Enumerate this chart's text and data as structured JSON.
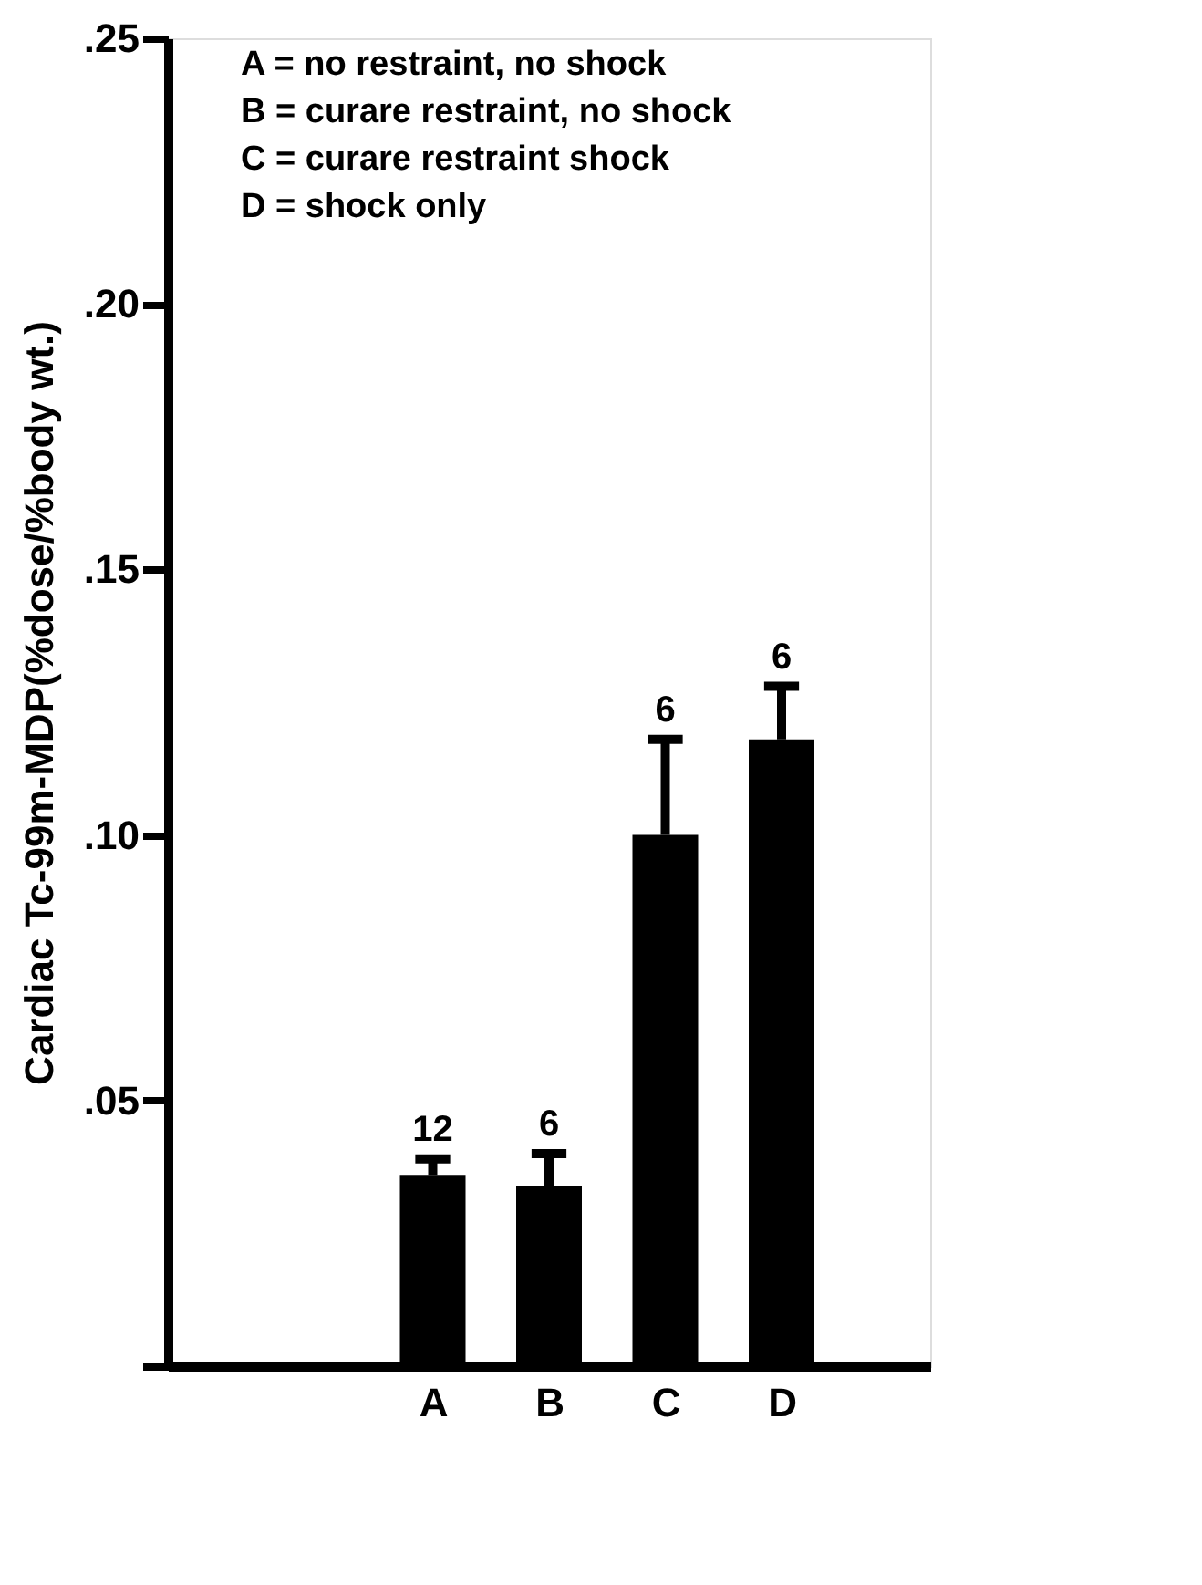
{
  "chart_data": {
    "type": "bar",
    "ylabel": "Cardiac  Tc-99m-MDP(%dose/%body wt.)",
    "categories": [
      "A",
      "B",
      "C",
      "D"
    ],
    "values": [
      0.036,
      0.034,
      0.1,
      0.118
    ],
    "errors": [
      [
        0.036,
        0.039
      ],
      [
        0.034,
        0.04
      ],
      [
        0.1,
        0.118
      ],
      [
        0.118,
        0.128
      ]
    ],
    "color": "#000000",
    "ylim": [
      0,
      0.25
    ],
    "yticks": [
      {
        "value": 0,
        "label": null
      },
      {
        "value": 0.05,
        "label": ".05"
      },
      {
        "value": 0.1,
        "label": ".10"
      },
      {
        "value": 0.15,
        "label": ".15"
      },
      {
        "value": 0.2,
        "label": ".20"
      },
      {
        "value": 0.25,
        "label": ".25"
      }
    ],
    "grid": false,
    "annotations": [
      "12",
      "6",
      "6",
      "6",
      "A = no restraint, no shock",
      "B = curare    restraint, no shock",
      "C = curare    restraint    shock",
      "D = shock only"
    ]
  }
}
